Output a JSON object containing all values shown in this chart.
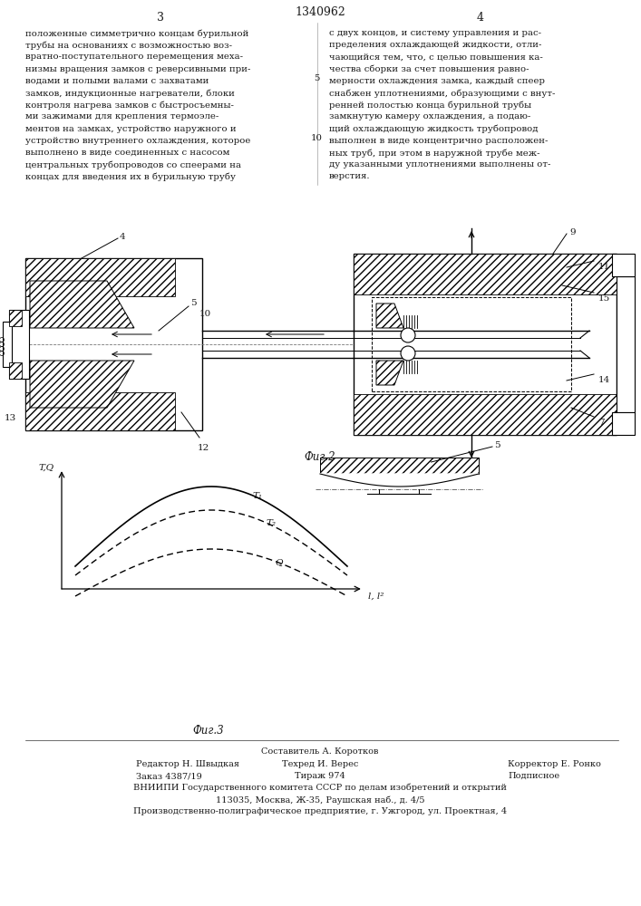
{
  "page_number_left": "3",
  "page_number_right": "4",
  "patent_number": "1340962",
  "text_left": "положенные симметрично концам бурильной\nтрубы на основаниях с возможностью воз-\nвратно-поступательного перемещения меха-\nнизмы вращения замков с реверсивными при-\nводами и полыми валами с захватами\nзамков, индукционные нагреватели, блоки\nконтроля нагрева замков с быстросъемны-\nми зажимами для крепления термоэле-\nментов на замках, устройство наружного и\nустройство внутреннего охлаждения, которое\nвыполнено в виде соединенных с насосом\nцентральных трубопроводов со спеерами на\nконцах для введения их в бурильную трубу",
  "text_right": "с двух концов, и систему управления и рас-\nпределения охлаждающей жидкости, отли-\nчающийся тем, что, с целью повышения ка-\nчества сборки за счет повышения равно-\nмерности охлаждения замка, каждый спеер\nснабжен уплотнениями, образующими с внут-\nренней полостью конца бурильной трубы\nзамкнутую камеру охлаждения, а подаю-\nщий охлаждающую жидкость трубопровод\nвыполнен в виде концентрично расположен-\nных труб, при этом в наружной трубе меж-\nду указанными уплотнениями выполнены от-\nверстия.",
  "fig2_label": "Фиг.2",
  "fig3_label": "Фиг.3",
  "fig3_xlabel": "l, l²",
  "fig3_ylabel": "T,Q",
  "fig3_curve_labels": [
    "T₁",
    "T₂",
    "Q"
  ],
  "footer_line0": "Составитель А. Коротков",
  "footer_line1_left": "Редактор Н. Швыдкая",
  "footer_line1_mid": "Техред И. Верес",
  "footer_line1_right": "Корректор Е. Ронко",
  "footer_line2_left": "Заказ 4387/19",
  "footer_line2_mid": "Тираж 974",
  "footer_line2_right": "Подписное",
  "footer_line3": "ВНИИПИ Государственного комитета СССР по делам изобретений и открытий",
  "footer_line4": "113035, Москва, Ж-35, Раушская наб., д. 4/5",
  "footer_line5": "Производственно-полиграфическое предприятие, г. Ужгород, ул. Проектная, 4",
  "bg_color": "#ffffff",
  "text_color": "#1a1a1a"
}
